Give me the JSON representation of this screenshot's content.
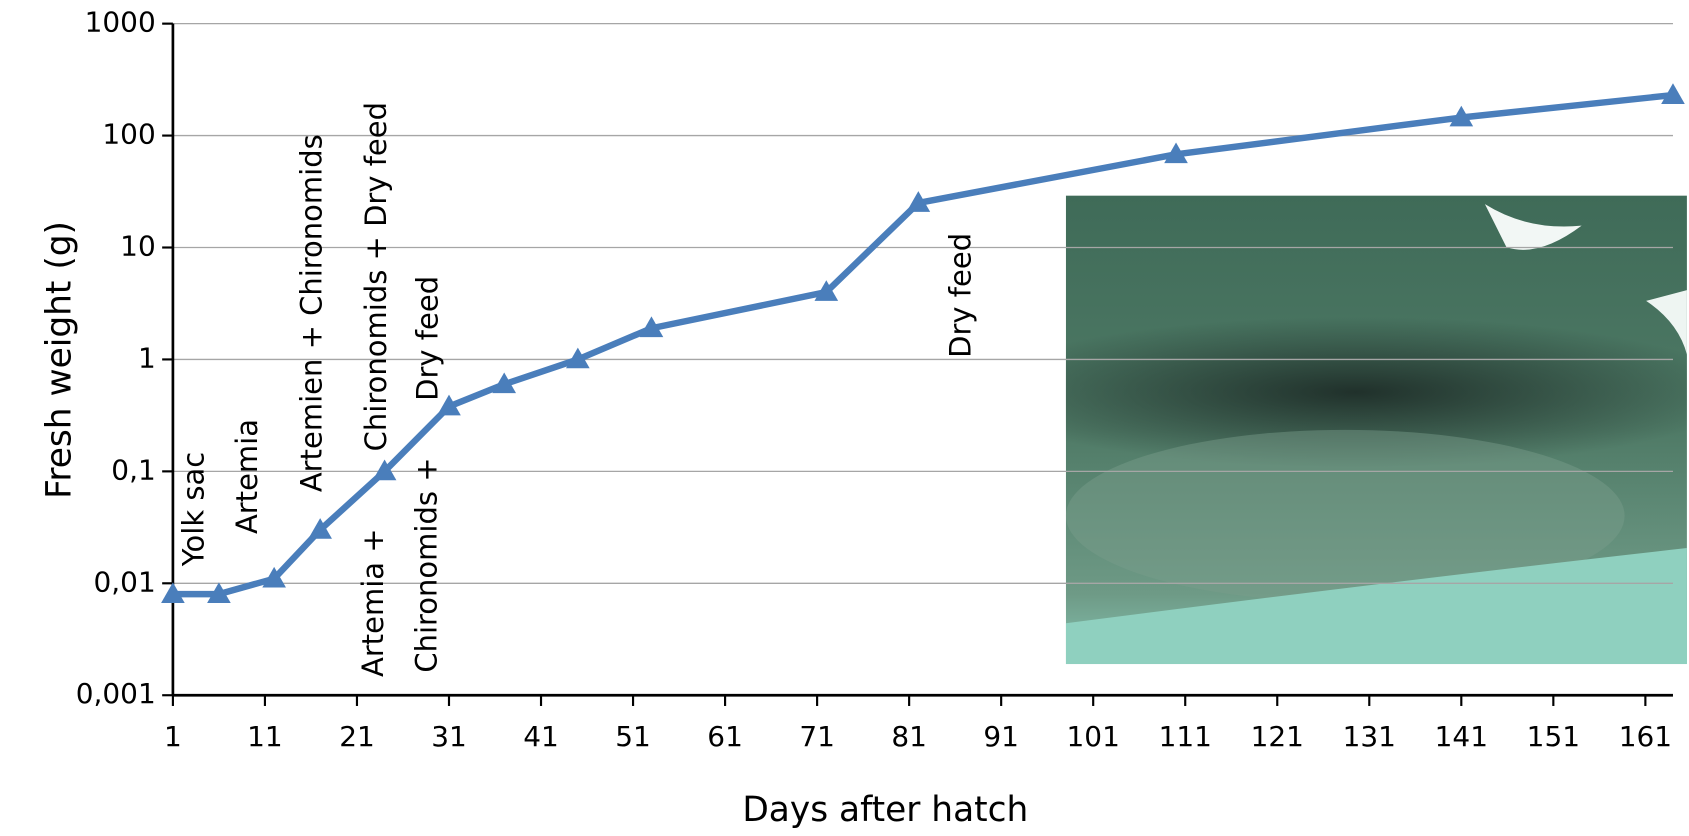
{
  "chart_data": {
    "type": "line",
    "x_label": "Days after hatch",
    "y_label": "Fresh weight (g)",
    "x": [
      1,
      6,
      12,
      17,
      24,
      31,
      37,
      45,
      53,
      72,
      82,
      110,
      141,
      164
    ],
    "values": [
      0.008,
      0.008,
      0.011,
      0.03,
      0.1,
      0.38,
      0.6,
      1.0,
      1.9,
      4.0,
      25,
      68,
      145,
      230
    ],
    "color": "#4a7ebb",
    "xlim": [
      1,
      164
    ],
    "xticks": [
      1,
      11,
      21,
      31,
      41,
      51,
      61,
      71,
      81,
      91,
      101,
      111,
      121,
      131,
      141,
      151,
      161
    ],
    "ylim": [
      0.001,
      1000
    ],
    "yticks": [
      {
        "value": 0.001,
        "label": "0,001"
      },
      {
        "value": 0.01,
        "label": "0,01"
      },
      {
        "value": 0.1,
        "label": "0,1"
      },
      1,
      10,
      100,
      1000
    ],
    "log_scale_y": true,
    "grid": true,
    "annotations": [
      "Yolk sac",
      "Artemia",
      "Artemien + Chironomids",
      "Chironomids + Dry feed",
      "Dry feed",
      "Artemia +",
      "Chironomids +",
      "Dry feed"
    ]
  }
}
